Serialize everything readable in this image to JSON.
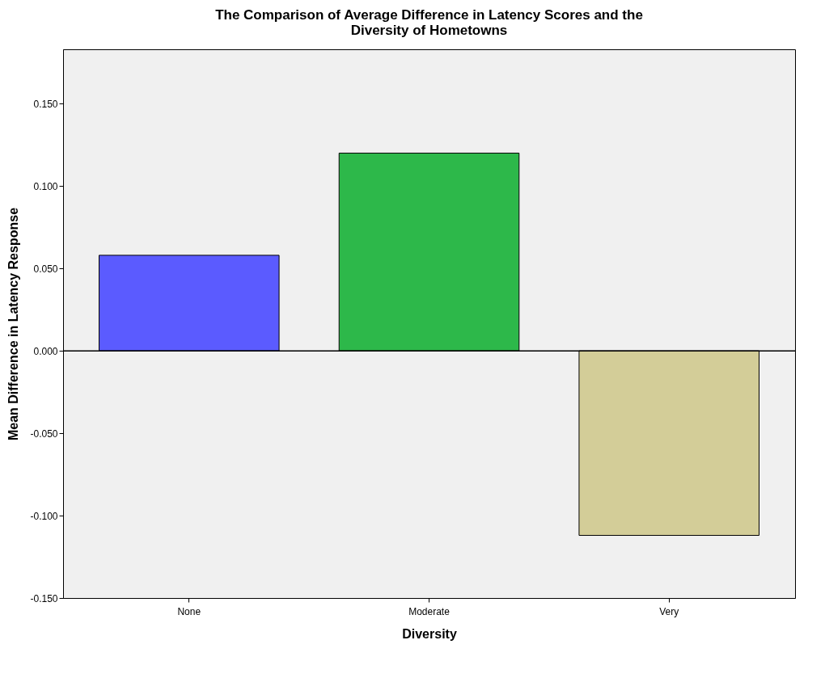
{
  "chart_data": {
    "type": "bar",
    "title": "The Comparison of Average Difference in Latency Scores and the Diversity of Hometowns",
    "xlabel": "Diversity",
    "ylabel": "Mean Difference in Latency Response",
    "categories": [
      "None",
      "Moderate",
      "Very"
    ],
    "values": [
      0.058,
      0.12,
      -0.112
    ],
    "colors": [
      "#5b5bff",
      "#2db84a",
      "#d3cd98"
    ],
    "ylim": [
      -0.15,
      0.183
    ],
    "yticks": [
      {
        "value": -0.15,
        "label": "-0.150"
      },
      {
        "value": -0.1,
        "label": "-0.100"
      },
      {
        "value": -0.05,
        "label": "-0.050"
      },
      {
        "value": 0,
        "label": "0.000"
      },
      {
        "value": 0.05,
        "label": "0.050"
      },
      {
        "value": 0.1,
        "label": "0.100"
      },
      {
        "value": 0.15,
        "label": "0.150"
      }
    ],
    "ref_lines": [
      {
        "axis": "y",
        "value": 0,
        "color": "#000000"
      }
    ],
    "grid": false
  }
}
